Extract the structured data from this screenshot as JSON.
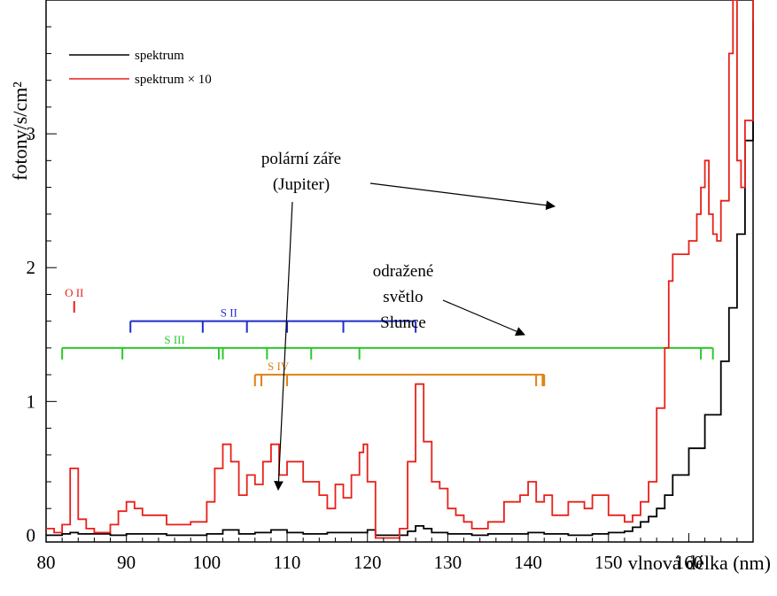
{
  "chart_data": {
    "type": "line",
    "xlabel": "vlnová délka (nm)",
    "ylabel": "fotony/s/cm²",
    "xlim": [
      80,
      168
    ],
    "ylim": [
      -0.05,
      4.0
    ],
    "x_ticks": [
      "80",
      "90",
      "100",
      "110",
      "120",
      "130",
      "140",
      "150",
      "160"
    ],
    "y_ticks": [
      "0",
      "1",
      "2",
      "3"
    ],
    "legend": {
      "position": "top-left"
    },
    "colors": {
      "spectrum": "#000000",
      "spectrum_x10": "#e8201a",
      "S_II": "#1f2ec8",
      "S_III": "#2cc82c",
      "S_IV": "#e08010",
      "O_II": "#e8201a"
    },
    "series": [
      {
        "name": "spektrum",
        "x": [
          80,
          82,
          83,
          84,
          86,
          88,
          90,
          92,
          95,
          100,
          102,
          104,
          106,
          108,
          110,
          112,
          115,
          117,
          119,
          120,
          121,
          124,
          125,
          126,
          127,
          128,
          130,
          133,
          135,
          140,
          142,
          145,
          148,
          150,
          152,
          153,
          154,
          155,
          156,
          157,
          158,
          160,
          162,
          164,
          165,
          166,
          167,
          168
        ],
        "y": [
          0.0,
          0.01,
          0.02,
          0.01,
          0.01,
          0.0,
          0.01,
          0.01,
          0.0,
          0.01,
          0.04,
          0.01,
          0.02,
          0.04,
          0.02,
          0.01,
          0.02,
          0.02,
          0.02,
          0.04,
          0.0,
          0.0,
          0.03,
          0.07,
          0.05,
          0.02,
          0.01,
          0.0,
          0.01,
          0.02,
          0.01,
          0.0,
          0.01,
          0.02,
          0.03,
          0.06,
          0.1,
          0.14,
          0.2,
          0.3,
          0.45,
          0.65,
          0.9,
          1.3,
          1.7,
          2.25,
          2.95,
          3.85
        ]
      },
      {
        "name": "spektrum × 10",
        "x": [
          80,
          81,
          82,
          83,
          84,
          85,
          86,
          88,
          89,
          90,
          91,
          92,
          95,
          98,
          100,
          101,
          102,
          103,
          104,
          105,
          106,
          107,
          108,
          109,
          110,
          112,
          114,
          115,
          116,
          117,
          118,
          119,
          119.5,
          120,
          121,
          122,
          123,
          124,
          125,
          126,
          127,
          128,
          129,
          130,
          131,
          132,
          133,
          135,
          137,
          139,
          140,
          141,
          142,
          143,
          145,
          147,
          148,
          150,
          152,
          153,
          154,
          155,
          156,
          157,
          157.5,
          158,
          159,
          160,
          161,
          161.5,
          162,
          162.5,
          163,
          163.5,
          164,
          165,
          165.5,
          166,
          166.5,
          167,
          168
        ],
        "y": [
          0.05,
          0.02,
          0.08,
          0.5,
          0.12,
          0.05,
          0.02,
          0.08,
          0.18,
          0.25,
          0.2,
          0.15,
          0.08,
          0.1,
          0.25,
          0.5,
          0.68,
          0.55,
          0.3,
          0.45,
          0.38,
          0.55,
          0.68,
          0.45,
          0.55,
          0.4,
          0.3,
          0.2,
          0.38,
          0.28,
          0.45,
          0.62,
          0.68,
          0.4,
          -0.02,
          -0.02,
          -0.02,
          0.05,
          0.55,
          1.13,
          0.7,
          0.4,
          0.35,
          0.2,
          0.15,
          0.1,
          0.05,
          0.1,
          0.25,
          0.3,
          0.4,
          0.25,
          0.3,
          0.15,
          0.25,
          0.2,
          0.3,
          0.15,
          0.1,
          0.15,
          0.25,
          0.4,
          0.95,
          1.4,
          1.9,
          2.1,
          2.1,
          2.2,
          2.4,
          2.6,
          2.8,
          2.4,
          2.25,
          2.2,
          2.5,
          3.6,
          4.0,
          2.8,
          2.6,
          3.1,
          4.0
        ]
      }
    ],
    "ion_markers": [
      {
        "label": "S II",
        "color_key": "S_II",
        "start": 90.5,
        "end": 126,
        "level": 1.6,
        "ticks": [
          90.5,
          99.5,
          105,
          110,
          117,
          126
        ]
      },
      {
        "label": "S III",
        "color_key": "S_III",
        "start": 82,
        "end": 163,
        "level": 1.4,
        "ticks": [
          82,
          89.5,
          101.5,
          102,
          107.5,
          113,
          119,
          161.5,
          163
        ]
      },
      {
        "label": "S IV",
        "color_key": "S_IV",
        "start": 106,
        "end": 142,
        "level": 1.2,
        "ticks": [
          106,
          106.8,
          110,
          141,
          141.8,
          142
        ]
      },
      {
        "label": "O II",
        "color_key": "O_II",
        "start": 83.5,
        "end": 83.5,
        "level": 1.75,
        "ticks": [
          83.5
        ]
      }
    ],
    "annotations": [
      {
        "text_lines": [
          "polární záře",
          "(Jupiter)"
        ]
      },
      {
        "text_lines": [
          "odražené",
          "světlo",
          "Slunce"
        ]
      }
    ]
  }
}
